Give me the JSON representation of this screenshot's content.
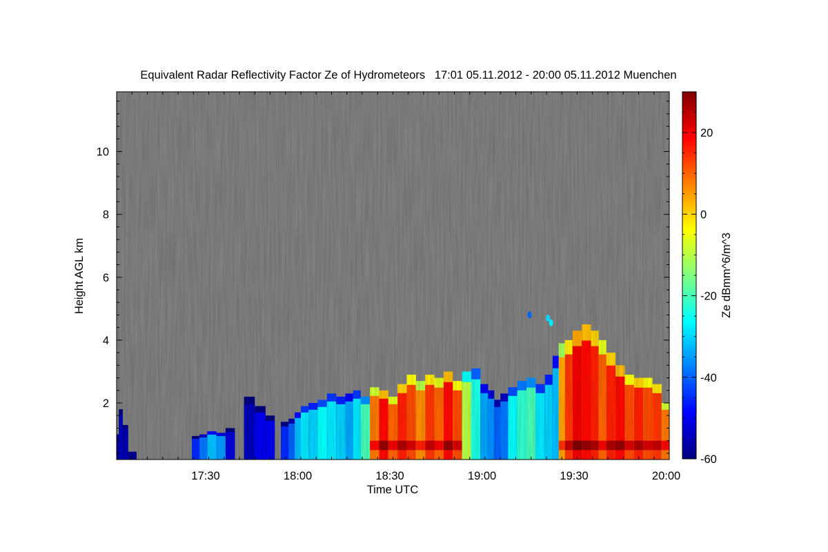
{
  "chart_data": {
    "type": "heatmap",
    "title": "Equivalent Radar Reflectivity Factor Ze of Hydrometeors   17:01 05.11.2012 - 20:00 05.11.2012 Muenchen",
    "xlabel": "Time UTC",
    "ylabel": "Height AGL km",
    "colorbar_label": "Ze dBmm^6/m^3",
    "x_range_min": [
      1021,
      1201
    ],
    "ylim": [
      0.2,
      11.9
    ],
    "x_ticks": [
      {
        "value": 1050,
        "label": "17:30"
      },
      {
        "value": 1080,
        "label": "18:00"
      },
      {
        "value": 1110,
        "label": "18:30"
      },
      {
        "value": 1140,
        "label": "19:00"
      },
      {
        "value": 1170,
        "label": "19:30"
      },
      {
        "value": 1200,
        "label": "20:00"
      }
    ],
    "y_ticks": [
      {
        "value": 2,
        "label": "2"
      },
      {
        "value": 4,
        "label": "4"
      },
      {
        "value": 6,
        "label": "6"
      },
      {
        "value": 8,
        "label": "8"
      },
      {
        "value": 10,
        "label": "10"
      }
    ],
    "colorbar_range": [
      -60,
      30
    ],
    "colorbar_ticks": [
      {
        "value": -60,
        "label": "-60"
      },
      {
        "value": -40,
        "label": "-40"
      },
      {
        "value": -20,
        "label": "-20"
      },
      {
        "value": 0,
        "label": "0"
      },
      {
        "value": 20,
        "label": "20"
      }
    ],
    "background_color": "#808080",
    "colormap": [
      "#00007f",
      "#0000ff",
      "#007fff",
      "#00ffff",
      "#7fff7f",
      "#ffff00",
      "#ff7f00",
      "#ff0000",
      "#7f0000"
    ],
    "echo_columns": [
      {
        "t": 1021.0,
        "top": 1.0,
        "ze": -58
      },
      {
        "t": 1022.5,
        "top": 1.8,
        "ze": -55
      },
      {
        "t": 1023.5,
        "top": 1.3,
        "ze": -56
      },
      {
        "t": 1026,
        "top": 0.45,
        "ze": -58
      },
      {
        "t": 1047,
        "top": 0.95,
        "ze": -45
      },
      {
        "t": 1049,
        "top": 1.0,
        "ze": -38
      },
      {
        "t": 1052,
        "top": 1.1,
        "ze": -32
      },
      {
        "t": 1055,
        "top": 1.05,
        "ze": -35
      },
      {
        "t": 1058,
        "top": 1.2,
        "ze": -52
      },
      {
        "t": 1064,
        "top": 2.2,
        "ze": -55
      },
      {
        "t": 1068,
        "top": 1.9,
        "ze": -50
      },
      {
        "t": 1071,
        "top": 1.6,
        "ze": -50
      },
      {
        "t": 1076,
        "top": 1.4,
        "ze": -45
      },
      {
        "t": 1078,
        "top": 1.5,
        "ze": -40
      },
      {
        "t": 1080,
        "top": 1.7,
        "ze": -32
      },
      {
        "t": 1082,
        "top": 1.9,
        "ze": -28
      },
      {
        "t": 1085,
        "top": 2.0,
        "ze": -30
      },
      {
        "t": 1088,
        "top": 2.1,
        "ze": -26
      },
      {
        "t": 1091,
        "top": 2.3,
        "ze": -28
      },
      {
        "t": 1094,
        "top": 2.2,
        "ze": -30
      },
      {
        "t": 1097,
        "top": 2.3,
        "ze": -34
      },
      {
        "t": 1099,
        "top": 2.4,
        "ze": -28
      },
      {
        "t": 1102,
        "top": 2.2,
        "ze": -20
      },
      {
        "t": 1105,
        "top": 2.5,
        "ze": 8
      },
      {
        "t": 1108,
        "top": 2.4,
        "ze": 18
      },
      {
        "t": 1111,
        "top": 2.2,
        "ze": 10
      },
      {
        "t": 1114,
        "top": 2.6,
        "ze": 16
      },
      {
        "t": 1117,
        "top": 2.9,
        "ze": 12
      },
      {
        "t": 1120,
        "top": 2.7,
        "ze": 6
      },
      {
        "t": 1123,
        "top": 2.9,
        "ze": 14
      },
      {
        "t": 1126,
        "top": 2.8,
        "ze": 10
      },
      {
        "t": 1129,
        "top": 3.0,
        "ze": 18
      },
      {
        "t": 1132,
        "top": 2.7,
        "ze": 12
      },
      {
        "t": 1135,
        "top": 3.0,
        "ze": -10
      },
      {
        "t": 1138,
        "top": 3.1,
        "ze": -24
      },
      {
        "t": 1141,
        "top": 2.6,
        "ze": -34
      },
      {
        "t": 1143,
        "top": 2.4,
        "ze": -36
      },
      {
        "t": 1145,
        "top": 2.1,
        "ze": -40
      },
      {
        "t": 1147,
        "top": 2.3,
        "ze": -38
      },
      {
        "t": 1150,
        "top": 2.5,
        "ze": -26
      },
      {
        "t": 1153,
        "top": 2.7,
        "ze": -22
      },
      {
        "t": 1156,
        "top": 2.8,
        "ze": -20
      },
      {
        "t": 1159,
        "top": 2.6,
        "ze": -28
      },
      {
        "t": 1162,
        "top": 2.9,
        "ze": -30
      },
      {
        "t": 1164,
        "top": 3.5,
        "ze": -32
      },
      {
        "t": 1166,
        "top": 3.9,
        "ze": 4
      },
      {
        "t": 1168,
        "top": 4.0,
        "ze": 14
      },
      {
        "t": 1171,
        "top": 4.3,
        "ze": 20
      },
      {
        "t": 1174,
        "top": 4.5,
        "ze": 18
      },
      {
        "t": 1177,
        "top": 4.3,
        "ze": 16
      },
      {
        "t": 1179,
        "top": 4.0,
        "ze": 10
      },
      {
        "t": 1182,
        "top": 3.6,
        "ze": 16
      },
      {
        "t": 1185,
        "top": 3.2,
        "ze": 18
      },
      {
        "t": 1188,
        "top": 2.9,
        "ze": 12
      },
      {
        "t": 1191,
        "top": 2.8,
        "ze": 16
      },
      {
        "t": 1194,
        "top": 2.8,
        "ze": 12
      },
      {
        "t": 1197,
        "top": 2.6,
        "ze": 14
      },
      {
        "t": 1200,
        "top": 2.0,
        "ze": 8
      }
    ],
    "isolated_echoes": [
      {
        "t": 1155.5,
        "height": 4.8,
        "ze": -40
      },
      {
        "t": 1161.5,
        "height": 4.7,
        "ze": -30
      },
      {
        "t": 1162.5,
        "height": 4.55,
        "ze": -28
      }
    ]
  }
}
